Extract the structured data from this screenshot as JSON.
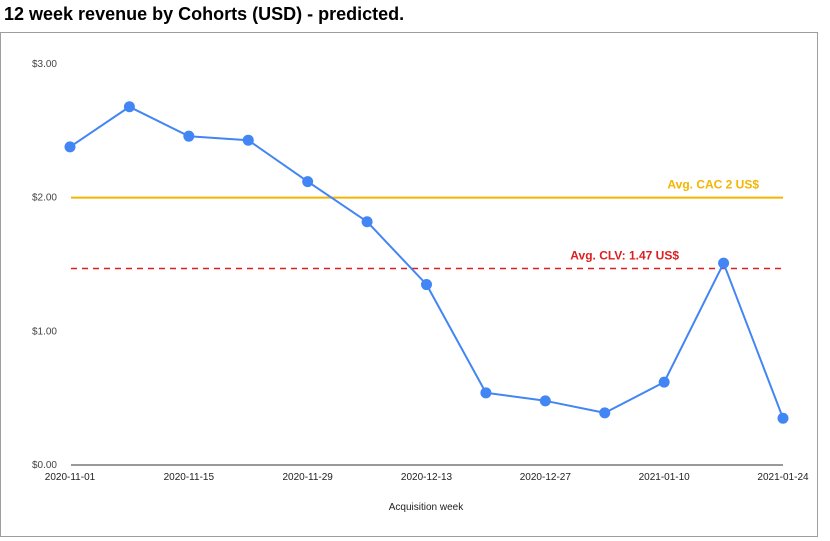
{
  "title": "12 week revenue by Cohorts (USD) - predicted.",
  "chart_data": {
    "type": "line",
    "title": "12 week revenue by Cohorts (USD) - predicted.",
    "xlabel": "Acquisition week",
    "ylabel": "",
    "ylim": [
      0,
      3
    ],
    "y_ticks": [
      {
        "value": 0,
        "label": "$0.00"
      },
      {
        "value": 1,
        "label": "$1.00"
      },
      {
        "value": 2,
        "label": "$2.00"
      },
      {
        "value": 3,
        "label": "$3.00"
      }
    ],
    "x_tick_labels": [
      "2020-11-01",
      "2020-11-15",
      "2020-11-29",
      "2020-12-13",
      "2020-12-27",
      "2021-01-10",
      "2021-01-24"
    ],
    "x": [
      "2020-11-01",
      "2020-11-08",
      "2020-11-15",
      "2020-11-22",
      "2020-11-29",
      "2020-12-06",
      "2020-12-13",
      "2020-12-20",
      "2020-12-27",
      "2021-01-03",
      "2021-01-10",
      "2021-01-17",
      "2021-01-24"
    ],
    "series": [
      {
        "values": [
          2.38,
          2.68,
          2.46,
          2.43,
          2.12,
          1.82,
          1.35,
          0.54,
          0.48,
          0.39,
          0.62,
          1.51,
          0.35
        ],
        "color": "#4285f4"
      }
    ],
    "reference_lines": [
      {
        "label": "Avg. CAC 2 US$",
        "value": 2.0,
        "color": "#f4b400",
        "style": "solid"
      },
      {
        "label": "Avg. CLV: 1.47 US$",
        "value": 1.47,
        "color": "#db2020",
        "style": "dashed"
      }
    ],
    "grid": false,
    "legend": "none"
  }
}
